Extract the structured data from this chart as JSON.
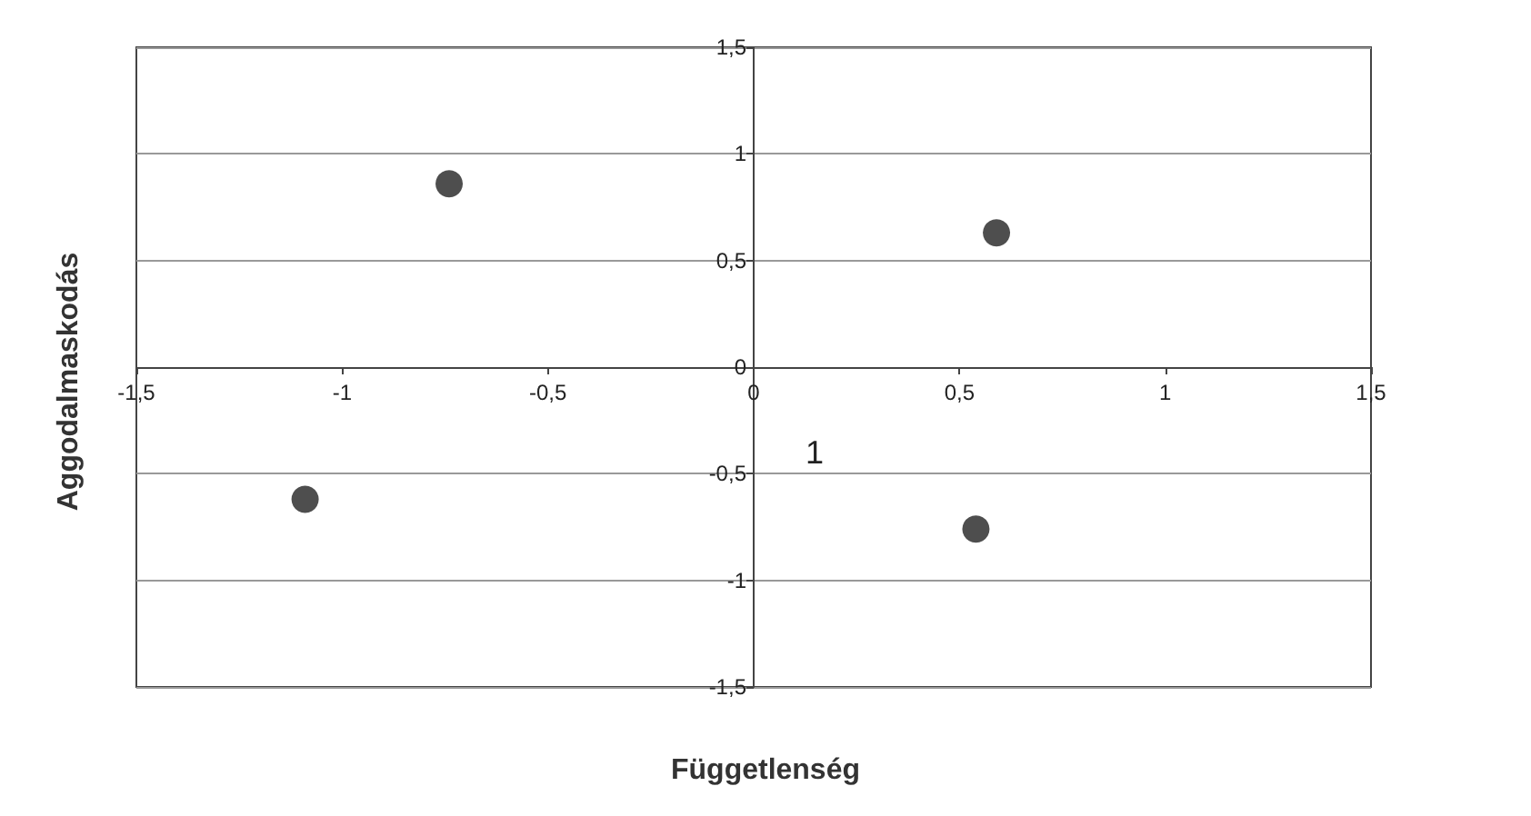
{
  "chart_data": {
    "type": "scatter",
    "xlabel": "Függetlenség",
    "ylabel": "Aggodalmaskodás",
    "x": [
      -0.74,
      0.59,
      -1.09,
      0.54
    ],
    "series": [
      {
        "color": "#222222",
        "values": [
          0.86,
          0.63,
          -0.62,
          -0.76
        ]
      }
    ],
    "xlim": [
      -1.5,
      1.5
    ],
    "ylim": [
      -1.5,
      1.5
    ],
    "xticks": [
      {
        "value": -1.5,
        "label": "-1,5"
      },
      -1,
      {
        "value": -0.5,
        "label": "-0,5"
      },
      0,
      {
        "value": 0.5,
        "label": "0,5"
      },
      1,
      {
        "value": 1.5,
        "label": "1,5"
      }
    ],
    "yticks": [
      {
        "value": -1.5,
        "label": "-1,5"
      },
      -1,
      {
        "value": -0.5,
        "label": "-0,5"
      },
      0,
      {
        "value": 0.5,
        "label": "0,5"
      },
      1,
      {
        "value": 1.5,
        "label": "1,5"
      }
    ],
    "annotations": [
      "1"
    ],
    "grid": "y",
    "marker": "circle"
  }
}
